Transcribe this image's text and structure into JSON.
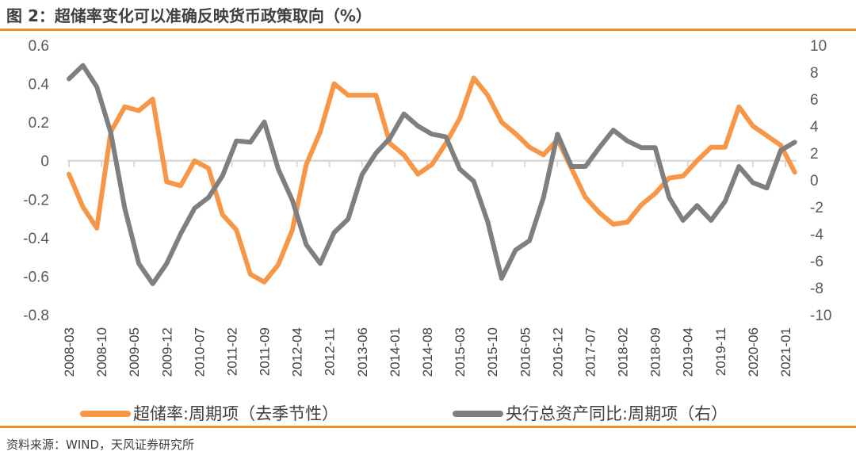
{
  "title": "图 2：超储率变化可以准确反映货币政策取向（%）",
  "source": "资料来源：WIND，天风证券研究所",
  "chart_data": {
    "type": "line",
    "title": "图 2：超储率变化可以准确反映货币政策取向（%）",
    "x_start": "2008-03",
    "x_frequency": "quarterly",
    "x_tick_labels": [
      "2008-03",
      "2008-10",
      "2009-05",
      "2009-12",
      "2010-07",
      "2011-02",
      "2011-09",
      "2012-04",
      "2012-11",
      "2013-06",
      "2014-01",
      "2014-08",
      "2015-03",
      "2015-10",
      "2016-05",
      "2016-12",
      "2017-07",
      "2018-02",
      "2018-09",
      "2019-04",
      "2019-11",
      "2020-06",
      "2021-01"
    ],
    "y_left": {
      "range": [
        -0.8,
        0.6
      ],
      "ticks": [
        "0.6",
        "0.4",
        "0.2",
        "0",
        "-0.2",
        "-0.4",
        "-0.6",
        "-0.8"
      ]
    },
    "y_right": {
      "range": [
        -10,
        10
      ],
      "ticks": [
        "10",
        "8",
        "6",
        "4",
        "2",
        "0",
        "-2",
        "-4",
        "-6",
        "-8",
        "-10"
      ]
    },
    "grid": false,
    "legend_position": "bottom",
    "series": [
      {
        "name": "超储率:周期项（去季节性）",
        "axis": "left",
        "color": "#f79646",
        "values": [
          -0.07,
          -0.24,
          -0.35,
          0.15,
          0.28,
          0.26,
          0.32,
          -0.11,
          -0.13,
          0.0,
          -0.04,
          -0.28,
          -0.36,
          -0.59,
          -0.63,
          -0.54,
          -0.36,
          -0.02,
          0.15,
          0.4,
          0.34,
          0.34,
          0.34,
          0.09,
          0.03,
          -0.07,
          -0.02,
          0.09,
          0.22,
          0.43,
          0.34,
          0.2,
          0.14,
          0.07,
          0.03,
          0.11,
          -0.04,
          -0.19,
          -0.27,
          -0.33,
          -0.32,
          -0.23,
          -0.17,
          -0.09,
          -0.08,
          0.0,
          0.07,
          0.07,
          0.28,
          0.18,
          0.13,
          0.08,
          -0.06
        ]
      },
      {
        "name": "央行总资产同比:周期项（右）",
        "axis": "right",
        "color": "#7f7f7f",
        "values": [
          7.5,
          8.5,
          6.9,
          3.5,
          -2.1,
          -6.2,
          -7.7,
          -6.2,
          -4.0,
          -2.1,
          -1.3,
          0.3,
          2.9,
          2.8,
          4.3,
          0.8,
          -1.5,
          -4.8,
          -6.2,
          -3.9,
          -2.9,
          0.4,
          2.0,
          3.1,
          4.9,
          4.0,
          3.4,
          3.2,
          0.8,
          -0.1,
          -3.1,
          -7.3,
          -5.2,
          -4.5,
          -1.3,
          3.4,
          1.0,
          1.0,
          2.4,
          3.7,
          2.9,
          2.4,
          2.4,
          -1.3,
          -3.0,
          -1.9,
          -3.0,
          -1.6,
          1.0,
          -0.2,
          -0.6,
          2.2,
          2.8
        ]
      }
    ]
  }
}
